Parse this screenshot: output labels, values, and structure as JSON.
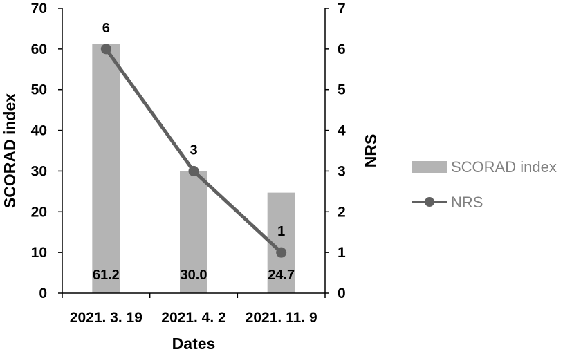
{
  "chart_data": {
    "type": "bar",
    "categories": [
      "2021. 3. 19",
      "2021. 4. 2",
      "2021. 11. 9"
    ],
    "series": [
      {
        "name": "SCORAD index",
        "type": "bar",
        "axis": "left",
        "values": [
          61.2,
          30.0,
          24.7
        ],
        "data_labels": [
          "61.2",
          "30.0",
          "24.7"
        ],
        "color": "#b4b4b4"
      },
      {
        "name": "NRS",
        "type": "line",
        "axis": "right",
        "values": [
          6,
          3,
          1
        ],
        "data_labels": [
          "6",
          "3",
          "1"
        ],
        "color": "#606060"
      }
    ],
    "xlabel": "Dates",
    "ylabel": "SCORAD index",
    "y2label": "NRS",
    "ylim": [
      0,
      70
    ],
    "y2lim": [
      0,
      7
    ],
    "yticks": [
      "0",
      "10",
      "20",
      "30",
      "40",
      "50",
      "60",
      "70"
    ],
    "y2ticks": [
      "0",
      "1",
      "2",
      "3",
      "4",
      "5",
      "6",
      "7"
    ],
    "grid": false,
    "legend_position": "right"
  }
}
